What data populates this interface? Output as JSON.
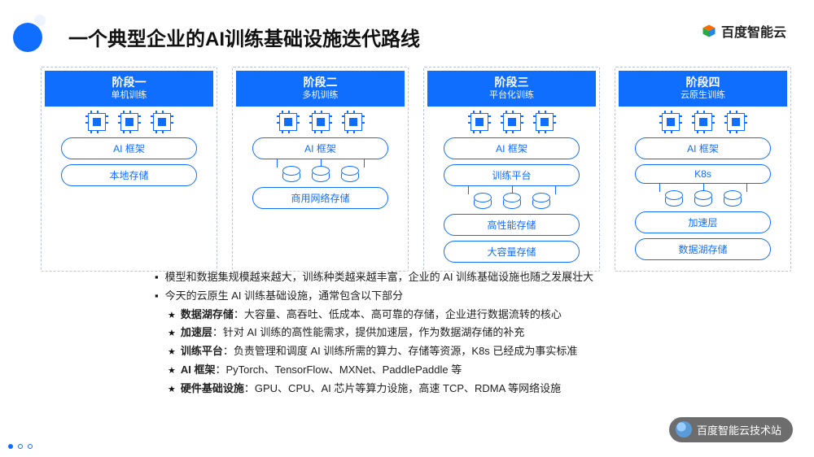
{
  "colors": {
    "accent": "#106eff",
    "border_dashed": "#b9c4d6",
    "bg": "#ffffff",
    "text": "#111111"
  },
  "title": "一个典型企业的AI训练基础设施迭代路线",
  "brand": "百度智能云",
  "footer_brand": "百度智能云技术站",
  "stages": [
    {
      "title": "阶段一",
      "subtitle": "单机训练",
      "layers": [
        {
          "type": "chips",
          "count": 3
        },
        {
          "type": "pill",
          "label": "AI 框架"
        },
        {
          "type": "pill",
          "label": "本地存储"
        }
      ]
    },
    {
      "title": "阶段二",
      "subtitle": "多机训练",
      "layers": [
        {
          "type": "chips",
          "count": 3
        },
        {
          "type": "pill",
          "label": "AI 框架"
        },
        {
          "type": "link3"
        },
        {
          "type": "cyls",
          "count": 3
        },
        {
          "type": "pill",
          "label": "商用网络存储"
        }
      ]
    },
    {
      "title": "阶段三",
      "subtitle": "平台化训练",
      "layers": [
        {
          "type": "chips",
          "count": 3
        },
        {
          "type": "pill",
          "label": "AI 框架"
        },
        {
          "type": "pill",
          "label": "训练平台"
        },
        {
          "type": "link3"
        },
        {
          "type": "cyls",
          "count": 3
        },
        {
          "type": "pill",
          "label": "高性能存储"
        },
        {
          "type": "pill",
          "label": "大容量存储"
        }
      ]
    },
    {
      "title": "阶段四",
      "subtitle": "云原生训练",
      "layers": [
        {
          "type": "chips",
          "count": 3
        },
        {
          "type": "pill",
          "label": "AI 框架"
        },
        {
          "type": "pill",
          "label": "K8s"
        },
        {
          "type": "link3"
        },
        {
          "type": "cyls",
          "count": 3
        },
        {
          "type": "pill",
          "label": "加速层"
        },
        {
          "type": "pill",
          "label": "数据湖存储"
        }
      ]
    }
  ],
  "bullets_top": [
    "模型和数据集规模越来越大，训练种类越来越丰富，企业的 AI 训练基础设施也随之发展壮大",
    "今天的云原生 AI 训练基础设施，通常包含以下部分"
  ],
  "bullets_star": [
    {
      "b": "数据湖存储",
      "t": "：大容量、高吞吐、低成本、高可靠的存储，企业进行数据流转的核心"
    },
    {
      "b": "加速层",
      "t": "：针对 AI 训练的高性能需求，提供加速层，作为数据湖存储的补充"
    },
    {
      "b": "训练平台",
      "t": "：负责管理和调度 AI 训练所需的算力、存储等资源，K8s 已经成为事实标准"
    },
    {
      "b": "AI 框架",
      "t": "：PyTorch、TensorFlow、MXNet、PaddlePaddle 等"
    },
    {
      "b": "硬件基础设施",
      "t": "：GPU、CPU、AI 芯片等算力设施，高速 TCP、RDMA 等网络设施"
    }
  ],
  "pager": {
    "total": 3,
    "active": 0
  }
}
